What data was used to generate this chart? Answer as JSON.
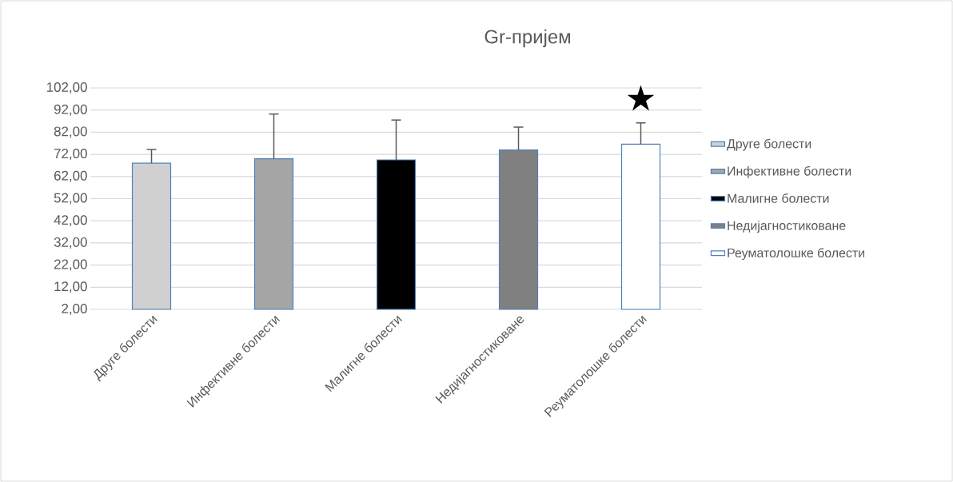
{
  "chart_data": {
    "type": "bar",
    "title": "Gr-пријем",
    "categories": [
      "Друге болести",
      "Инфективне болести",
      "Малигне болести",
      "Недијагностиковане",
      "Реуматолошке болести"
    ],
    "series": [
      {
        "name": "Друге болести",
        "color": "#d0d0d0",
        "values": [
          68.0,
          null,
          null,
          null,
          null
        ],
        "errors": [
          [
            68.0,
            74.2
          ],
          null,
          null,
          null,
          null
        ]
      },
      {
        "name": "Инфективне болести",
        "color": "#a5a5a5",
        "values": [
          null,
          70.0,
          null,
          null,
          null
        ],
        "errors": [
          null,
          [
            70.0,
            90.2
          ],
          null,
          null,
          null
        ]
      },
      {
        "name": "Малигне болести",
        "color": "#000000",
        "values": [
          null,
          null,
          69.5,
          null,
          null
        ],
        "errors": [
          null,
          null,
          [
            69.5,
            87.5
          ],
          null,
          null
        ]
      },
      {
        "name": "Недијагностиковане",
        "color": "#808080",
        "values": [
          null,
          null,
          null,
          74.0,
          null
        ],
        "errors": [
          null,
          null,
          null,
          [
            74.0,
            84.3
          ],
          null
        ]
      },
      {
        "name": "Реуматолошке болести",
        "color": "#ffffff",
        "values": [
          null,
          null,
          null,
          null,
          76.6
        ],
        "errors": [
          null,
          null,
          null,
          null,
          [
            76.6,
            86.2
          ]
        ]
      }
    ],
    "ylim": [
      2,
      102
    ],
    "yticks": [
      {
        "value": 2,
        "label": "2,00"
      },
      {
        "value": 12,
        "label": "12,00"
      },
      {
        "value": 22,
        "label": "22,00"
      },
      {
        "value": 32,
        "label": "32,00"
      },
      {
        "value": 42,
        "label": "42,00"
      },
      {
        "value": 52,
        "label": "52,00"
      },
      {
        "value": 62,
        "label": "62,00"
      },
      {
        "value": 72,
        "label": "72,00"
      },
      {
        "value": 82,
        "label": "82,00"
      },
      {
        "value": 92,
        "label": "92,00"
      },
      {
        "value": 102,
        "label": "102,00"
      }
    ],
    "grid": "y",
    "legend": "right",
    "annotations": [
      "★"
    ]
  }
}
